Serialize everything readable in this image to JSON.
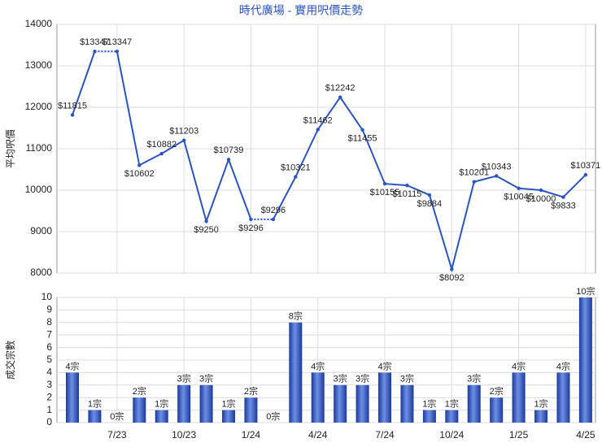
{
  "chart_data": [
    {
      "type": "line",
      "title": "時代廣場 - 實用呎價走勢",
      "y_label": "平均呎價",
      "color": "#2a55c0",
      "values": [
        11815,
        13347,
        13347,
        10602,
        10882,
        11203,
        9250,
        10739,
        9296,
        9296,
        10321,
        11462,
        12242,
        11455,
        10155,
        10115,
        9884,
        8092,
        10201,
        10343,
        10045,
        10000,
        9833,
        10371
      ],
      "value_labels": [
        "$11815",
        "$13347",
        "$13347",
        "$10602",
        "$10882",
        "$11203",
        "$9250",
        "$10739",
        "$9296",
        "$9296",
        "$10321",
        "$11462",
        "$12242",
        "$11455",
        "$10155",
        "$10115",
        "$9884",
        "$8092",
        "$10201",
        "$10343",
        "$10045",
        "$10000",
        "$9833",
        "$10371"
      ],
      "ylim": [
        8000,
        14000
      ],
      "yticks": [
        8000,
        9000,
        10000,
        11000,
        12000,
        13000,
        14000
      ],
      "grid": true
    },
    {
      "type": "bar",
      "y_label": "成交宗數",
      "color": "#2f57c4",
      "categories": [
        null,
        null,
        "7/23",
        null,
        null,
        "10/23",
        null,
        null,
        "1/24",
        null,
        null,
        "4/24",
        null,
        null,
        "7/24",
        null,
        null,
        "10/24",
        null,
        null,
        "1/25",
        null,
        null,
        "4/25"
      ],
      "values": [
        4,
        1,
        0,
        2,
        1,
        3,
        3,
        1,
        2,
        0,
        8,
        4,
        3,
        3,
        4,
        3,
        1,
        1,
        3,
        2,
        4,
        1,
        4,
        10
      ],
      "value_labels": [
        "4宗",
        "1宗",
        "0宗",
        "2宗",
        "1宗",
        "3宗",
        "3宗",
        "1宗",
        "2宗",
        "0宗",
        "8宗",
        "4宗",
        "3宗",
        "3宗",
        "4宗",
        "3宗",
        "1宗",
        "1宗",
        "3宗",
        "2宗",
        "4宗",
        "1宗",
        "4宗",
        "10宗"
      ],
      "ylim": [
        0,
        10
      ],
      "yticks": [
        0,
        1,
        2,
        3,
        4,
        5,
        6,
        7,
        8,
        9,
        10
      ],
      "grid": true
    }
  ]
}
